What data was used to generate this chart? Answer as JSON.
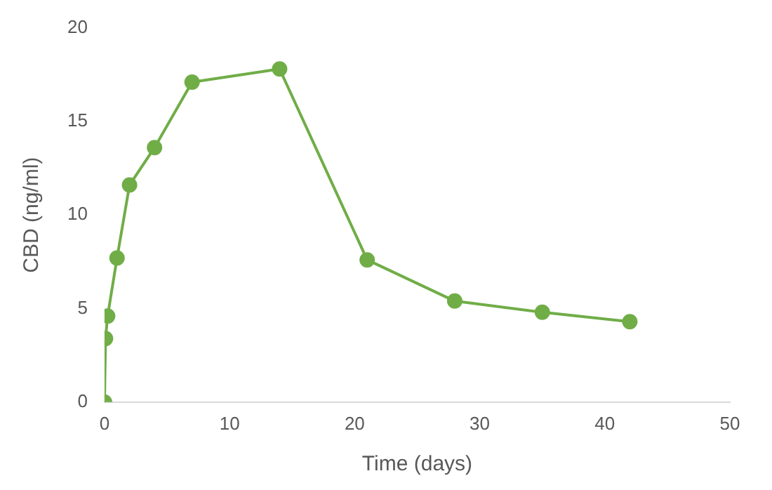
{
  "chart_data": {
    "type": "line",
    "xlabel": "Time (days)",
    "ylabel": "CBD (ng/ml)",
    "x": [
      0,
      0.08,
      0.25,
      1,
      2,
      4,
      7,
      14,
      21,
      28,
      35,
      42
    ],
    "series": [
      {
        "color": "#70ad47",
        "values": [
          0,
          3.4,
          4.6,
          7.7,
          11.6,
          13.6,
          17.1,
          17.8,
          7.6,
          5.4,
          4.8,
          4.3
        ]
      }
    ],
    "xlim": [
      0,
      50
    ],
    "xticks": [
      0,
      10,
      20,
      30,
      40,
      50
    ],
    "ylim": [
      0,
      20
    ],
    "yticks": [
      0,
      5,
      10,
      15,
      20
    ],
    "grid": false,
    "legend": false,
    "marker": "circle",
    "line_style": "solid"
  }
}
